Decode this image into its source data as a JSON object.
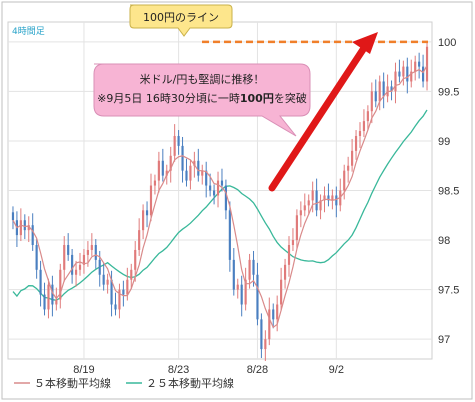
{
  "chart_data": {
    "type": "candlestick",
    "period_label": "4時間足",
    "x_tick_labels": [
      "8/19",
      "8/23",
      "8/28",
      "9/2"
    ],
    "y_tick_labels": [
      "97",
      "97.5",
      "98",
      "98.5",
      "99",
      "99.5",
      "100"
    ],
    "ylim": [
      96.8,
      100.2
    ],
    "grid": true,
    "reference_line": {
      "value": 100,
      "label": "100円のライン",
      "color": "#f07f2a"
    },
    "callout": {
      "line1": "米ドル/円も堅調に推移！",
      "line2_prefix": "※9月5日 16時30分頃に一時",
      "line2_bold": "100円",
      "line2_suffix": "を突破"
    },
    "legend": [
      {
        "label": "５本移動平均線",
        "color": "#d98a8a"
      },
      {
        "label": "２５本移動平均線",
        "color": "#39b89a"
      }
    ],
    "colors": {
      "up": "#e07a7a",
      "down": "#4a7fc0",
      "ma5": "#d98a8a",
      "ma25": "#39b89a",
      "arrow": "#e01818",
      "callout_bg": "#f7b4d4",
      "label_bg": "#fde68c"
    },
    "closes": [
      98.2,
      98.05,
      98.2,
      98.1,
      98.15,
      97.95,
      97.7,
      97.45,
      97.3,
      97.55,
      97.35,
      97.4,
      97.7,
      97.95,
      97.85,
      97.65,
      97.7,
      97.75,
      97.85,
      97.9,
      97.95,
      97.8,
      97.65,
      97.55,
      97.6,
      97.35,
      97.3,
      97.5,
      97.45,
      97.6,
      97.7,
      97.9,
      98.1,
      98.3,
      98.25,
      98.55,
      98.6,
      98.8,
      98.65,
      98.7,
      98.85,
      99.05,
      98.95,
      98.7,
      98.6,
      98.75,
      98.8,
      98.65,
      98.7,
      98.55,
      98.5,
      98.45,
      98.6,
      98.55,
      98.3,
      97.8,
      97.5,
      97.55,
      97.35,
      97.6,
      97.8,
      97.65,
      97.2,
      96.9,
      97.0,
      97.3,
      97.2,
      97.35,
      97.6,
      97.75,
      97.95,
      98.0,
      98.25,
      98.3,
      98.35,
      98.4,
      98.5,
      98.3,
      98.4,
      98.45,
      98.4,
      98.45,
      98.35,
      98.5,
      98.7,
      98.75,
      98.9,
      99.05,
      99.1,
      99.2,
      99.3,
      99.5,
      99.4,
      99.6,
      99.45,
      99.55,
      99.5,
      99.7,
      99.65,
      99.75,
      99.6,
      99.7,
      99.8,
      99.75,
      99.6,
      99.95
    ]
  }
}
